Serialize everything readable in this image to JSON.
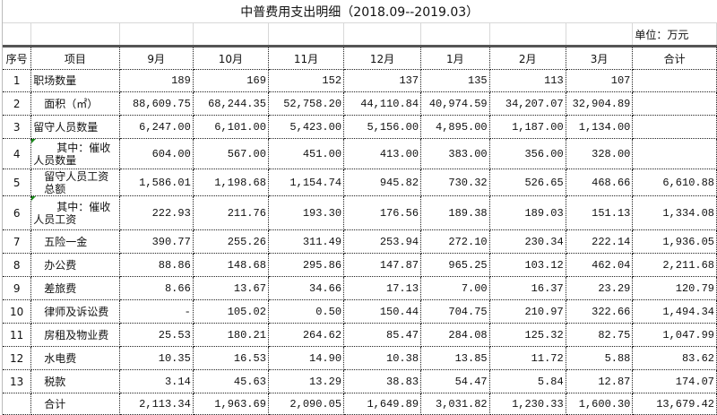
{
  "title": "中普费用支出明细（2018.09--2019.03）",
  "unit": "单位：万元",
  "headers": [
    "序号",
    "项目",
    "9月",
    "10月",
    "11月",
    "12月",
    "1月",
    "2月",
    "3月",
    "合计"
  ],
  "rows": [
    {
      "seq": "1",
      "item": "职场数量",
      "style": "",
      "values": [
        "189",
        "169",
        "152",
        "137",
        "135",
        "113",
        "107",
        ""
      ]
    },
    {
      "seq": "2",
      "item": "面积（㎡）",
      "style": "ind1",
      "values": [
        "88,609.75",
        "68,244.35",
        "52,758.20",
        "44,110.84",
        "40,974.59",
        "34,207.07",
        "32,904.89",
        ""
      ]
    },
    {
      "seq": "3",
      "item": "留守人员数量",
      "style": "",
      "values": [
        "6,247.00",
        "6,101.00",
        "5,423.00",
        "5,156.00",
        "4,895.00",
        "1,187.00",
        "1,134.00",
        ""
      ]
    },
    {
      "seq": "4",
      "item": "其中：催收人员数量",
      "style": "ind2",
      "values": [
        "604.00",
        "567.00",
        "451.00",
        "413.00",
        "383.00",
        "356.00",
        "328.00",
        ""
      ]
    },
    {
      "seq": "5",
      "item": "留守人员工资总额",
      "style": "ind1",
      "values": [
        "1,586.01",
        "1,198.68",
        "1,154.74",
        "945.82",
        "730.32",
        "526.65",
        "468.66",
        "6,610.88"
      ]
    },
    {
      "seq": "6",
      "item": "其中：催收人员工资",
      "style": "ind2",
      "values": [
        "222.93",
        "211.76",
        "193.30",
        "176.56",
        "189.38",
        "189.03",
        "151.13",
        "1,334.08"
      ]
    },
    {
      "seq": "7",
      "item": "五险一金",
      "style": "ind1",
      "values": [
        "390.77",
        "255.26",
        "311.49",
        "253.94",
        "272.10",
        "230.34",
        "222.14",
        "1,936.05"
      ]
    },
    {
      "seq": "8",
      "item": "办公费",
      "style": "ind1",
      "values": [
        "88.86",
        "148.68",
        "295.86",
        "147.87",
        "965.25",
        "103.12",
        "462.04",
        "2,211.68"
      ]
    },
    {
      "seq": "9",
      "item": "差旅费",
      "style": "ind1",
      "values": [
        "8.66",
        "13.67",
        "34.66",
        "17.13",
        "7.00",
        "16.37",
        "23.29",
        "120.79"
      ]
    },
    {
      "seq": "10",
      "item": "律师及诉讼费",
      "style": "ind1",
      "values": [
        "-",
        "105.02",
        "0.50",
        "150.44",
        "704.75",
        "210.97",
        "322.66",
        "1,494.34"
      ]
    },
    {
      "seq": "11",
      "item": "房租及物业费",
      "style": "ind1",
      "values": [
        "25.53",
        "180.21",
        "264.62",
        "85.47",
        "284.08",
        "125.32",
        "82.75",
        "1,047.99"
      ]
    },
    {
      "seq": "12",
      "item": "水电费",
      "style": "ind1",
      "values": [
        "10.35",
        "16.53",
        "14.90",
        "10.38",
        "13.85",
        "11.72",
        "5.88",
        "83.62"
      ]
    },
    {
      "seq": "13",
      "item": "税款",
      "style": "ind1",
      "values": [
        "3.14",
        "45.63",
        "13.29",
        "38.83",
        "54.47",
        "5.84",
        "12.87",
        "174.07"
      ]
    },
    {
      "seq": "",
      "item": "合计",
      "style": "ind1",
      "values": [
        "2,113.34",
        "1,963.69",
        "2,090.05",
        "1,649.89",
        "3,031.82",
        "1,230.33",
        "1,600.30",
        "13,679.42"
      ]
    }
  ],
  "colors": {
    "grid": "#222222",
    "comment_marker": "#1a8a1a"
  }
}
